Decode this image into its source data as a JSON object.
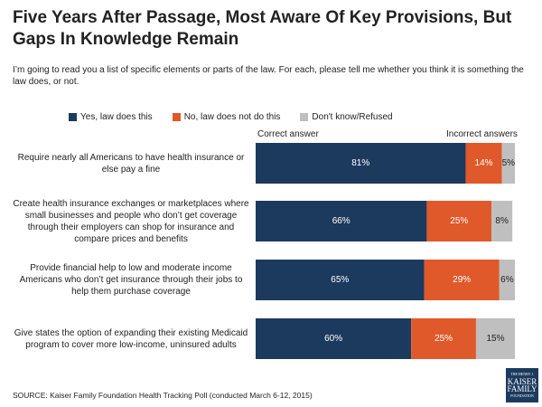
{
  "chart_data": {
    "type": "stacked-bar-horizontal",
    "title": "Five Years After Passage, Most Aware Of Key Provisions, But Gaps In Knowledge Remain",
    "subtitle": "I’m going to read you a list of specific elements or parts of the law. For each, please tell me whether you think it is something the law does, or not.",
    "annotations": [
      "Correct answer",
      "Incorrect answers"
    ],
    "categories": [
      "Require nearly all Americans to have health insurance or else pay a fine",
      "Create health insurance exchanges or marketplaces where small businesses and people who don’t get coverage through their employers can shop for insurance and compare prices and benefits",
      "Provide financial help to low and moderate income Americans who don’t get insurance through their jobs to help them purchase coverage",
      "Give states the option of expanding their existing Medicaid program to cover more low-income, uninsured adults"
    ],
    "xlim": [
      0,
      100
    ],
    "series": [
      {
        "name": "Yes, law does this",
        "color": "#1c3a5e",
        "label_color": "#ffffff",
        "values": [
          81,
          66,
          65,
          60
        ],
        "value_labels": [
          "81%",
          "66%",
          "65%",
          "60%"
        ]
      },
      {
        "name": "No, law does not do this",
        "color": "#e0592a",
        "label_color": "#ffffff",
        "values": [
          14,
          25,
          29,
          25
        ],
        "value_labels": [
          "14%",
          "25%",
          "29%",
          "25%"
        ]
      },
      {
        "name": "Don't know/Refused",
        "color": "#bfbfbf",
        "label_color": "#222222",
        "values": [
          5,
          8,
          6,
          15
        ],
        "value_labels": [
          "5%",
          "8%",
          "6%",
          "15%"
        ]
      }
    ],
    "source": "SOURCE: Kaiser Family Foundation Health Tracking Poll (conducted March 6-12, 2015)",
    "logo": [
      "THE HENRY J.",
      "KAISER",
      "FAMILY",
      "FOUNDATION"
    ]
  }
}
